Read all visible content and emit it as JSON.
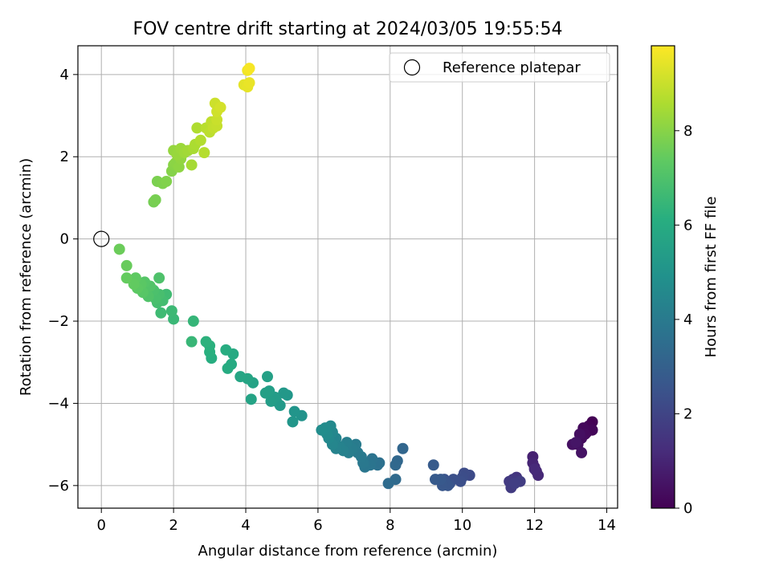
{
  "chart_data": {
    "type": "scatter",
    "title": "FOV centre drift starting at 2024/03/05 19:55:54",
    "xlabel": "Angular distance from reference (arcmin)",
    "ylabel": "Rotation from reference (arcmin)",
    "xlim": [
      -0.65,
      14.3
    ],
    "ylim": [
      -6.55,
      4.7
    ],
    "xticks": [
      0,
      2,
      4,
      6,
      8,
      10,
      12,
      14
    ],
    "yticks": [
      -6,
      -4,
      -2,
      0,
      2,
      4
    ],
    "grid": true,
    "legend": {
      "placement": "top-right",
      "label": "Reference platepar"
    },
    "reference_point": {
      "x": 0,
      "y": 0
    },
    "colorbar": {
      "label": "Hours from first FF file",
      "colormap": "viridis",
      "range": [
        0,
        9.8
      ],
      "ticks": [
        0,
        2,
        4,
        6,
        8
      ]
    },
    "points": [
      [
        13.6,
        -4.45,
        0.0
      ],
      [
        13.5,
        -4.55,
        0.05
      ],
      [
        13.45,
        -4.7,
        0.1
      ],
      [
        13.6,
        -4.65,
        0.15
      ],
      [
        13.35,
        -4.6,
        0.2
      ],
      [
        13.4,
        -4.75,
        0.25
      ],
      [
        13.3,
        -4.85,
        0.3
      ],
      [
        13.2,
        -5.0,
        0.35
      ],
      [
        13.25,
        -4.75,
        0.4
      ],
      [
        13.05,
        -5.0,
        0.45
      ],
      [
        13.3,
        -5.2,
        0.5
      ],
      [
        13.15,
        -4.95,
        0.55
      ],
      [
        11.95,
        -5.3,
        0.9
      ],
      [
        12.0,
        -5.55,
        0.95
      ],
      [
        11.95,
        -5.45,
        1.0
      ],
      [
        12.05,
        -5.65,
        1.05
      ],
      [
        12.1,
        -5.75,
        1.1
      ],
      [
        12.0,
        -5.6,
        1.15
      ],
      [
        11.5,
        -5.8,
        1.5
      ],
      [
        11.55,
        -5.9,
        1.55
      ],
      [
        11.4,
        -5.85,
        1.6
      ],
      [
        11.3,
        -5.9,
        1.65
      ],
      [
        11.35,
        -6.05,
        1.7
      ],
      [
        11.6,
        -5.9,
        1.75
      ],
      [
        11.45,
        -5.95,
        1.8
      ],
      [
        10.2,
        -5.75,
        2.2
      ],
      [
        10.05,
        -5.7,
        2.25
      ],
      [
        10.0,
        -5.8,
        2.3
      ],
      [
        9.95,
        -5.9,
        2.35
      ],
      [
        9.75,
        -5.85,
        2.4
      ],
      [
        9.65,
        -5.95,
        2.45
      ],
      [
        9.5,
        -5.85,
        2.5
      ],
      [
        9.55,
        -5.95,
        2.55
      ],
      [
        9.6,
        -6.0,
        2.6
      ],
      [
        9.45,
        -6.0,
        2.65
      ],
      [
        9.4,
        -5.85,
        2.7
      ],
      [
        9.25,
        -5.85,
        2.75
      ],
      [
        9.2,
        -5.5,
        2.8
      ],
      [
        8.35,
        -5.1,
        3.2
      ],
      [
        8.2,
        -5.4,
        3.25
      ],
      [
        8.15,
        -5.5,
        3.3
      ],
      [
        8.15,
        -5.85,
        3.35
      ],
      [
        7.95,
        -5.95,
        3.4
      ],
      [
        7.7,
        -5.45,
        3.6
      ],
      [
        7.65,
        -5.5,
        3.65
      ],
      [
        7.5,
        -5.35,
        3.7
      ],
      [
        7.45,
        -5.5,
        3.75
      ],
      [
        7.3,
        -5.45,
        3.8
      ],
      [
        7.3,
        -5.55,
        3.85
      ],
      [
        7.25,
        -5.45,
        3.9
      ],
      [
        7.2,
        -5.3,
        3.95
      ],
      [
        7.1,
        -5.2,
        4.0
      ],
      [
        7.05,
        -5.0,
        4.05
      ],
      [
        6.95,
        -5.1,
        4.1
      ],
      [
        6.85,
        -5.2,
        4.15
      ],
      [
        6.8,
        -4.95,
        4.2
      ],
      [
        6.7,
        -5.15,
        4.25
      ],
      [
        6.6,
        -5.05,
        4.3
      ],
      [
        6.5,
        -5.1,
        4.35
      ],
      [
        6.5,
        -4.85,
        4.4
      ],
      [
        6.4,
        -5.0,
        4.45
      ],
      [
        6.4,
        -4.7,
        4.5
      ],
      [
        6.3,
        -4.85,
        4.55
      ],
      [
        6.35,
        -4.55,
        4.6
      ],
      [
        6.25,
        -4.75,
        4.65
      ],
      [
        6.2,
        -4.6,
        4.7
      ],
      [
        6.1,
        -4.65,
        4.75
      ],
      [
        5.55,
        -4.3,
        5.0
      ],
      [
        5.35,
        -4.2,
        5.05
      ],
      [
        5.3,
        -4.45,
        5.1
      ],
      [
        5.15,
        -3.8,
        5.15
      ],
      [
        5.05,
        -3.75,
        5.2
      ],
      [
        4.95,
        -4.05,
        5.25
      ],
      [
        4.85,
        -3.95,
        5.3
      ],
      [
        4.8,
        -3.85,
        5.35
      ],
      [
        4.7,
        -3.95,
        5.4
      ],
      [
        4.65,
        -3.7,
        5.45
      ],
      [
        4.55,
        -3.75,
        5.5
      ],
      [
        4.6,
        -3.35,
        5.55
      ],
      [
        4.2,
        -3.5,
        5.6
      ],
      [
        4.15,
        -3.9,
        5.65
      ],
      [
        4.05,
        -3.4,
        5.7
      ],
      [
        3.85,
        -3.35,
        5.75
      ],
      [
        3.65,
        -2.8,
        5.9
      ],
      [
        3.6,
        -3.05,
        5.95
      ],
      [
        3.5,
        -3.15,
        6.0
      ],
      [
        3.45,
        -2.7,
        6.05
      ],
      [
        3.05,
        -2.9,
        6.1
      ],
      [
        3.0,
        -2.75,
        6.15
      ],
      [
        3.0,
        -2.6,
        6.2
      ],
      [
        2.9,
        -2.5,
        6.25
      ],
      [
        2.55,
        -2.0,
        6.45
      ],
      [
        2.5,
        -2.5,
        6.5
      ],
      [
        2.0,
        -1.95,
        6.55
      ],
      [
        1.95,
        -1.75,
        6.6
      ],
      [
        1.65,
        -1.8,
        6.65
      ],
      [
        1.8,
        -1.35,
        6.7
      ],
      [
        1.7,
        -1.5,
        6.75
      ],
      [
        1.55,
        -1.55,
        6.8
      ],
      [
        1.6,
        -1.35,
        6.85
      ],
      [
        1.5,
        -1.45,
        6.9
      ],
      [
        1.45,
        -1.25,
        6.95
      ],
      [
        1.6,
        -0.95,
        7.0
      ],
      [
        1.3,
        -1.4,
        7.05
      ],
      [
        1.35,
        -1.15,
        7.1
      ],
      [
        1.2,
        -1.05,
        7.15
      ],
      [
        1.15,
        -1.3,
        7.2
      ],
      [
        1.1,
        -1.1,
        7.25
      ],
      [
        1.0,
        -1.2,
        7.3
      ],
      [
        0.95,
        -0.95,
        7.35
      ],
      [
        0.9,
        -1.1,
        7.4
      ],
      [
        0.7,
        -0.95,
        7.45
      ],
      [
        0.7,
        -0.65,
        7.5
      ],
      [
        0.5,
        -0.25,
        7.55
      ],
      [
        1.45,
        0.9,
        7.7
      ],
      [
        1.5,
        0.95,
        7.75
      ],
      [
        1.55,
        1.4,
        7.8
      ],
      [
        1.7,
        1.35,
        7.85
      ],
      [
        1.8,
        1.4,
        7.9
      ],
      [
        1.95,
        1.65,
        7.95
      ],
      [
        2.0,
        1.8,
        8.0
      ],
      [
        2.05,
        1.85,
        8.05
      ],
      [
        2.15,
        1.75,
        8.1
      ],
      [
        2.2,
        1.95,
        8.15
      ],
      [
        2.0,
        2.15,
        8.2
      ],
      [
        2.1,
        2.05,
        8.25
      ],
      [
        2.2,
        2.2,
        8.3
      ],
      [
        2.3,
        2.1,
        8.35
      ],
      [
        2.4,
        2.15,
        8.4
      ],
      [
        2.5,
        1.8,
        8.45
      ],
      [
        2.55,
        2.2,
        8.5
      ],
      [
        2.6,
        2.3,
        8.55
      ],
      [
        2.65,
        2.7,
        8.6
      ],
      [
        2.75,
        2.4,
        8.65
      ],
      [
        2.85,
        2.1,
        8.7
      ],
      [
        2.9,
        2.7,
        8.75
      ],
      [
        3.0,
        2.6,
        8.8
      ],
      [
        3.05,
        2.85,
        8.85
      ],
      [
        3.1,
        2.7,
        8.9
      ],
      [
        3.2,
        2.75,
        8.95
      ],
      [
        3.2,
        2.9,
        9.0
      ],
      [
        3.15,
        3.3,
        9.05
      ],
      [
        3.2,
        3.1,
        9.1
      ],
      [
        3.3,
        3.2,
        9.15
      ],
      [
        3.95,
        3.75,
        9.4
      ],
      [
        4.05,
        3.7,
        9.45
      ],
      [
        4.1,
        3.8,
        9.5
      ],
      [
        4.05,
        4.1,
        9.6
      ],
      [
        4.1,
        4.15,
        9.7
      ]
    ]
  }
}
